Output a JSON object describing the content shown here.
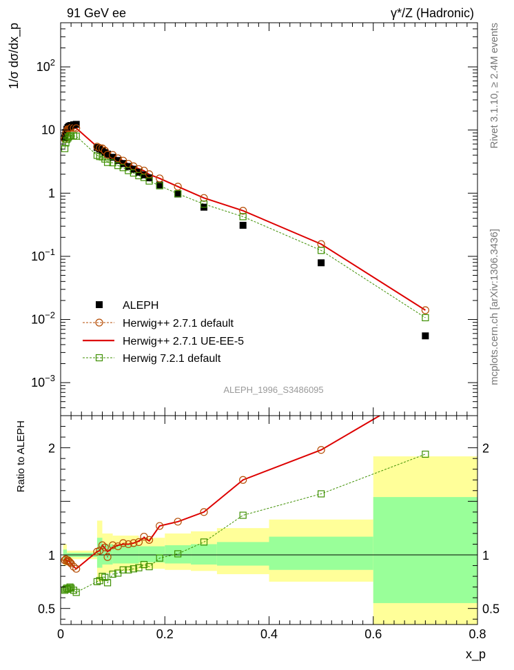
{
  "chart_data": {
    "type": "scatter",
    "header_left": "91 GeV ee",
    "header_right": "γ*/Z (Hadronic)",
    "ylabel": "1/σ dσ/dx_p",
    "xlabel": "x_p",
    "ratio_ylabel": "Ratio to ALEPH",
    "watermark": "ALEPH_1996_S3486095",
    "side_label_top": "Rivet 3.1.10, ≥ 2.4M events",
    "side_label_bottom": "mcplots.cern.ch [arXiv:1306.3436]",
    "x_range": [
      0,
      0.8
    ],
    "y_range": [
      0.0003,
      500
    ],
    "y_scale": "log",
    "ratio_range": [
      0.35,
      2.3
    ],
    "x_ticks": [
      "0",
      "0.2",
      "0.4",
      "0.6",
      "0.8"
    ],
    "y_ticks": [
      "10^-3",
      "10^-2",
      "10^-1",
      "1",
      "10",
      "10^2"
    ],
    "ratio_ticks": [
      "0.5",
      "1",
      "2"
    ],
    "legend_position": "lower-left",
    "x": [
      0.008,
      0.01,
      0.012,
      0.014,
      0.016,
      0.018,
      0.02,
      0.025,
      0.03,
      0.07,
      0.075,
      0.08,
      0.085,
      0.09,
      0.1,
      0.11,
      0.12,
      0.13,
      0.14,
      0.15,
      0.16,
      0.17,
      0.19,
      0.225,
      0.275,
      0.35,
      0.5,
      0.7
    ],
    "series": [
      {
        "name": "ALEPH",
        "color": "#000000",
        "values": [
          7.6,
          9.2,
          10.3,
          11.0,
          11.4,
          11.6,
          11.8,
          12.1,
          12.3,
          5.3,
          5.0,
          4.7,
          4.4,
          4.15,
          3.7,
          3.3,
          2.95,
          2.65,
          2.4,
          2.15,
          1.95,
          1.75,
          1.35,
          0.97,
          0.6,
          0.31,
          0.079,
          0.0055
        ]
      },
      {
        "name": "Herwig++ 2.7.1 default",
        "color": "#b54a00",
        "ratio": [
          0.95,
          0.96,
          0.94,
          0.95,
          0.94,
          0.93,
          0.92,
          0.89,
          0.87,
          1.03,
          1.04,
          1.09,
          1.07,
          0.98,
          1.09,
          1.08,
          1.11,
          1.1,
          1.11,
          1.12,
          1.17,
          1.14,
          1.27,
          1.31,
          1.4,
          1.7,
          1.98,
          2.55
        ]
      },
      {
        "name": "Herwig++ 2.7.1 UE-EE-5",
        "color": "#dd0000",
        "ratio": [
          0.95,
          0.96,
          0.94,
          0.95,
          0.94,
          0.93,
          0.92,
          0.89,
          0.87,
          1.03,
          1.04,
          1.09,
          1.06,
          1.03,
          1.07,
          1.09,
          1.1,
          1.1,
          1.11,
          1.13,
          1.16,
          1.13,
          1.27,
          1.31,
          1.4,
          1.7,
          1.98,
          2.55
        ]
      },
      {
        "name": "Herwig 7.2.1 default",
        "color": "#3d8f00",
        "ratio": [
          0.67,
          0.68,
          0.69,
          0.68,
          0.69,
          0.7,
          0.69,
          0.67,
          0.65,
          0.75,
          0.76,
          0.8,
          0.79,
          0.74,
          0.82,
          0.83,
          0.86,
          0.86,
          0.87,
          0.88,
          0.91,
          0.89,
          0.97,
          1.01,
          1.12,
          1.37,
          1.57,
          1.94
        ]
      }
    ],
    "ratio_bands": {
      "yellow_color": "#ffff99",
      "green_color": "#99ff99",
      "bins": [
        {
          "x0": 0.005,
          "x1": 0.012,
          "y_lo": 0.9,
          "y_hi": 1.1,
          "g_lo": 0.95,
          "g_hi": 1.05
        },
        {
          "x0": 0.012,
          "x1": 0.07,
          "y_lo": 0.96,
          "y_hi": 1.04,
          "g_lo": 0.98,
          "g_hi": 1.02
        },
        {
          "x0": 0.07,
          "x1": 0.08,
          "y_lo": 0.75,
          "y_hi": 1.32,
          "g_lo": 0.88,
          "g_hi": 1.16
        },
        {
          "x0": 0.08,
          "x1": 0.1,
          "y_lo": 0.83,
          "y_hi": 1.2,
          "g_lo": 0.91,
          "g_hi": 1.1
        },
        {
          "x0": 0.1,
          "x1": 0.15,
          "y_lo": 0.85,
          "y_hi": 1.18,
          "g_lo": 0.92,
          "g_hi": 1.09
        },
        {
          "x0": 0.15,
          "x1": 0.2,
          "y_lo": 0.87,
          "y_hi": 1.16,
          "g_lo": 0.93,
          "g_hi": 1.08
        },
        {
          "x0": 0.2,
          "x1": 0.25,
          "y_lo": 0.86,
          "y_hi": 1.2,
          "g_lo": 0.92,
          "g_hi": 1.09
        },
        {
          "x0": 0.25,
          "x1": 0.3,
          "y_lo": 0.85,
          "y_hi": 1.22,
          "g_lo": 0.91,
          "g_hi": 1.1
        },
        {
          "x0": 0.3,
          "x1": 0.4,
          "y_lo": 0.82,
          "y_hi": 1.25,
          "g_lo": 0.9,
          "g_hi": 1.12
        },
        {
          "x0": 0.4,
          "x1": 0.6,
          "y_lo": 0.75,
          "y_hi": 1.33,
          "g_lo": 0.86,
          "g_hi": 1.17
        },
        {
          "x0": 0.6,
          "x1": 0.8,
          "y_lo": 0.35,
          "y_hi": 1.92,
          "g_lo": 0.55,
          "g_hi": 1.54
        }
      ]
    }
  }
}
